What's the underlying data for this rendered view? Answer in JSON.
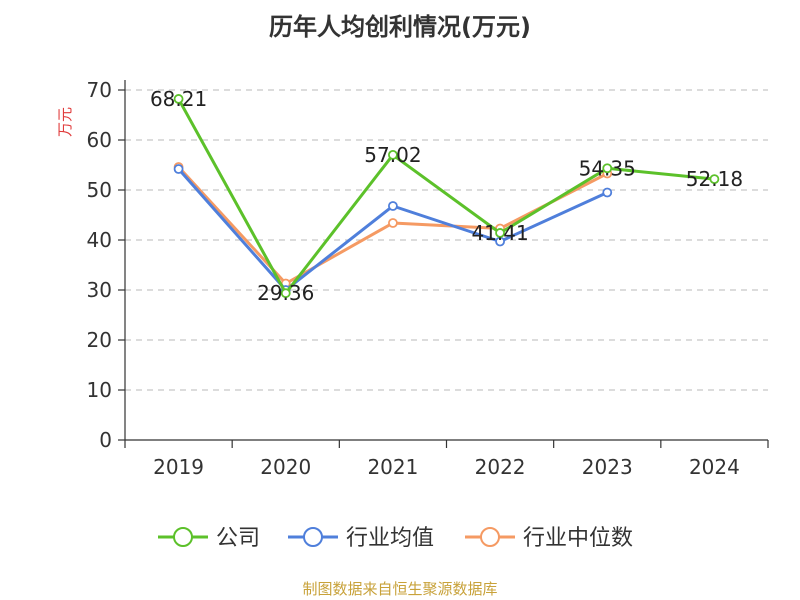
{
  "chart_data": {
    "type": "line",
    "title": "历年人均创利情况(万元)",
    "ylabel": "万元",
    "categories": [
      "2019",
      "2020",
      "2021",
      "2022",
      "2023",
      "2024"
    ],
    "ylim": [
      0,
      70
    ],
    "yticks": [
      0,
      10,
      20,
      30,
      40,
      50,
      60,
      70
    ],
    "grid": true,
    "legend_position": "bottom",
    "series": [
      {
        "name": "公司",
        "values": [
          68.21,
          29.36,
          57.02,
          41.41,
          54.35,
          52.18
        ],
        "color": "#5cc12a",
        "labels": [
          "68.21",
          "29.36",
          "57.02",
          "41.41",
          "54.35",
          "52.18"
        ]
      },
      {
        "name": "行业均值",
        "values": [
          54.2,
          30.0,
          46.8,
          39.7,
          49.5,
          null
        ],
        "color": "#4f7fdb"
      },
      {
        "name": "行业中位数",
        "values": [
          54.6,
          31.3,
          43.4,
          42.3,
          53.3,
          null
        ],
        "color": "#f59a63"
      }
    ],
    "source": "制图数据来自恒生聚源数据库",
    "colors": {
      "axis": "#333333",
      "grid": "#c8c8c8",
      "ylabel": "#e03c3c",
      "source": "#c8a23a"
    }
  }
}
